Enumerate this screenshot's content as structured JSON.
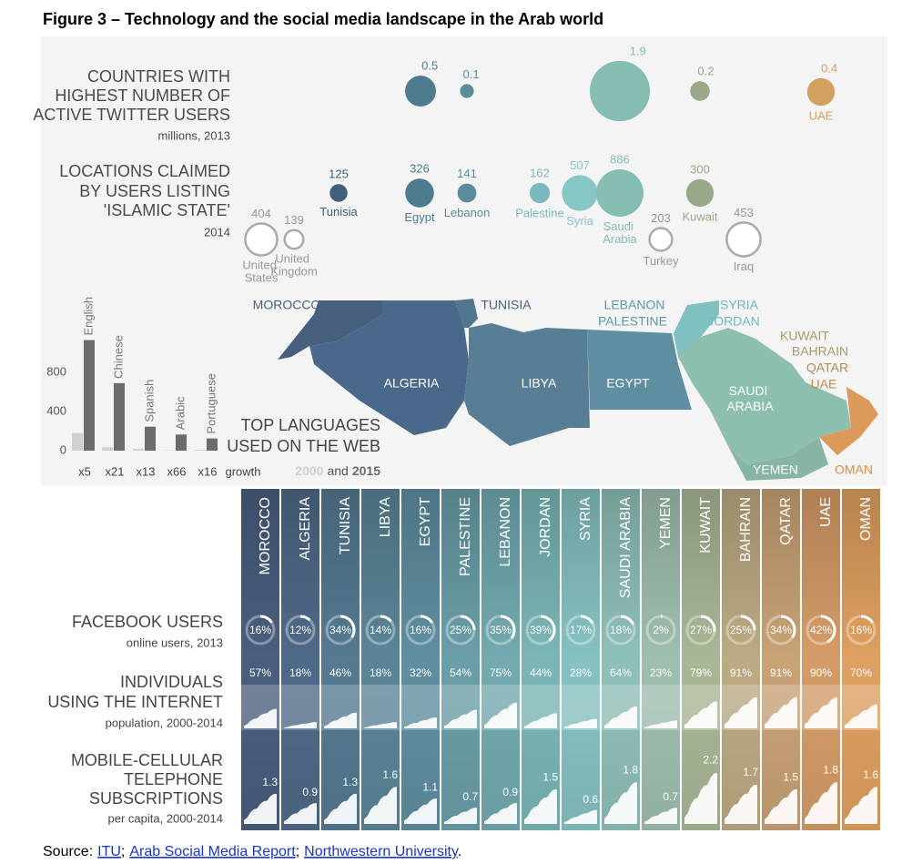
{
  "title": "Figure 3 – Technology and the social media landscape in the Arab world",
  "chart_data": [
    {
      "type": "bubble",
      "title": [
        "COUNTRIES WITH",
        "HIGHEST NUMBER OF",
        "ACTIVE TWITTER USERS"
      ],
      "subtitle": "millions, 2013",
      "categories": [
        null,
        null,
        null,
        null,
        "UAE"
      ],
      "values": [
        0.5,
        0.1,
        1.9,
        0.2,
        0.4
      ],
      "colors": [
        "#4f7b8e",
        "#5a8c9c",
        "#86bdb2",
        "#98a888",
        "#d4a060"
      ]
    },
    {
      "type": "bubble",
      "title": [
        "LOCATIONS CLAIMED",
        "BY USERS LISTING",
        "'ISLAMIC STATE'"
      ],
      "subtitle": "2014",
      "categories": [
        "United States",
        "United Kingdom",
        "Tunisia",
        "Egypt",
        "Lebanon",
        "Palestine",
        "Syria",
        "Saudi Arabia",
        "Turkey",
        "Kuwait",
        "Iraq"
      ],
      "values": [
        404,
        139,
        125,
        326,
        141,
        162,
        507,
        886,
        203,
        300,
        453
      ],
      "colors": [
        "none",
        "none",
        "#3f5f7a",
        "#4f7b8e",
        "#5a8c9c",
        "#7ab9bd",
        "#86c6c4",
        "#86bdb2",
        "none",
        "#98a888",
        "none"
      ]
    },
    {
      "type": "bar",
      "title": [
        "TOP LANGUAGES",
        "USED ON THE WEB"
      ],
      "categories": [
        "English",
        "Chinese",
        "Spanish",
        "Arabic",
        "Portuguese"
      ],
      "growth_labels": [
        "x5",
        "x21",
        "x13",
        "x66",
        "x16"
      ],
      "growth_title": "growth",
      "legend_joiner": "and",
      "series": [
        {
          "name": "2000",
          "color": "#d0d0d0",
          "values": [
            180,
            35,
            20,
            3,
            8
          ]
        },
        {
          "name": "2015",
          "color": "#6b6b6b",
          "values": [
            1130,
            690,
            245,
            165,
            125
          ]
        }
      ],
      "ylim": [
        0,
        1200
      ],
      "yticks": [
        0,
        400,
        800
      ],
      "grid": false
    }
  ],
  "map": {
    "labels": [
      "MOROCCO",
      "ALGERIA",
      "TUNISIA",
      "LIBYA",
      "EGYPT",
      "LEBANON",
      "PALESTINE",
      "SYRIA",
      "JORDAN",
      "KUWAIT",
      "BAHRAIN",
      "QATAR",
      "UAE",
      "SAUDI ARABIA",
      "YEMEN",
      "OMAN"
    ]
  },
  "table": {
    "columns": [
      {
        "name": "MOROCCO",
        "color": "#4a5f7e"
      },
      {
        "name": "ALGERIA",
        "color": "#4f6a88"
      },
      {
        "name": "TUNISIA",
        "color": "#557a92"
      },
      {
        "name": "LIBYA",
        "color": "#5a8598"
      },
      {
        "name": "EGYPT",
        "color": "#5f8fa0"
      },
      {
        "name": "PALESTINE",
        "color": "#6a9ea8"
      },
      {
        "name": "LEBANON",
        "color": "#72aab0"
      },
      {
        "name": "JORDAN",
        "color": "#7ab6b6"
      },
      {
        "name": "SYRIA",
        "color": "#86c2c2"
      },
      {
        "name": "SAUDI ARABIA",
        "color": "#8fc0b8"
      },
      {
        "name": "YEMEN",
        "color": "#9fbfae"
      },
      {
        "name": "KUWAIT",
        "color": "#a9b796"
      },
      {
        "name": "BAHRAIN",
        "color": "#bcaa82"
      },
      {
        "name": "QATAR",
        "color": "#c9a276"
      },
      {
        "name": "UAE",
        "color": "#d59c68"
      },
      {
        "name": "OMAN",
        "color": "#dfa060"
      }
    ],
    "rows": [
      {
        "title": [
          "FACEBOOK USERS"
        ],
        "subtitle": "online users, 2013",
        "values": [
          16,
          12,
          34,
          14,
          16,
          25,
          35,
          39,
          17,
          18,
          2,
          27,
          25,
          34,
          42,
          16
        ],
        "value_labels": [
          "16%",
          "12%",
          "34%",
          "14%",
          "16%",
          "25%",
          "35%",
          "39%",
          "17%",
          "18%",
          "2%",
          "27%",
          "25%",
          "34%",
          "42%",
          "16%"
        ]
      },
      {
        "title": [
          "INDIVIDUALS",
          "USING THE INTERNET"
        ],
        "subtitle": "population, 2000-2014",
        "values": [
          57,
          18,
          46,
          18,
          32,
          54,
          75,
          44,
          28,
          64,
          23,
          79,
          91,
          91,
          90,
          70
        ],
        "value_labels": [
          "57%",
          "18%",
          "46%",
          "18%",
          "32%",
          "54%",
          "75%",
          "44%",
          "28%",
          "64%",
          "23%",
          "79%",
          "91%",
          "91%",
          "90%",
          "70%"
        ]
      },
      {
        "title": [
          "MOBILE-CELLULAR",
          "TELEPHONE",
          "SUBSCRIPTIONS"
        ],
        "subtitle": "per capita, 2000-2014",
        "values": [
          1.3,
          0.9,
          1.3,
          1.6,
          1.1,
          0.7,
          0.9,
          1.5,
          0.6,
          1.8,
          0.7,
          2.2,
          1.7,
          1.5,
          1.8,
          1.6
        ]
      }
    ]
  },
  "source": {
    "label": "Source:",
    "links": [
      "ITU",
      "Arab Social Media Report",
      "Northwestern University"
    ],
    "separator": ";",
    "end": "."
  }
}
